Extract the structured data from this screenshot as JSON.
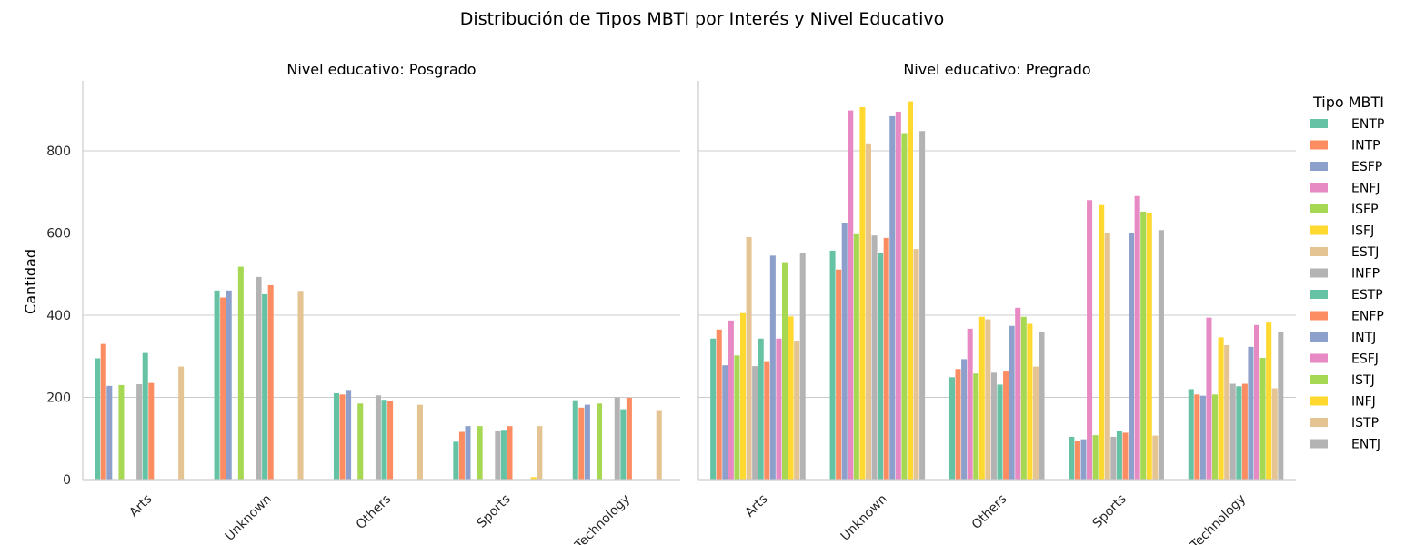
{
  "chart_data": {
    "type": "bar",
    "title": "Distribución de Tipos MBTI por Interés y Nivel Educativo",
    "ylabel": "Cantidad",
    "xlabel": "",
    "ylim": [
      0,
      970
    ],
    "yticks": [
      0,
      200,
      400,
      600,
      800
    ],
    "categories": [
      "Arts",
      "Unknown",
      "Others",
      "Sports",
      "Technology"
    ],
    "grid": "horizontal",
    "legend": {
      "title": "Tipo MBTI",
      "placement": "right",
      "entries": [
        "ENTP",
        "INTP",
        "ESFP",
        "ENFJ",
        "ISFP",
        "ISFJ",
        "ESTJ",
        "INFP",
        "ESTP",
        "ENFP",
        "INTJ",
        "ESFJ",
        "ISTJ",
        "INFJ",
        "ISTP",
        "ENTJ"
      ]
    },
    "colors": [
      "#66c2a5",
      "#fc8d62",
      "#8da0cb",
      "#e78ac3",
      "#a6d854",
      "#ffd92f",
      "#e5c494",
      "#b3b3b3",
      "#66c2a5",
      "#fc8d62",
      "#8da0cb",
      "#e78ac3",
      "#a6d854",
      "#ffd92f",
      "#e5c494",
      "#b3b3b3"
    ],
    "panels": [
      {
        "title": "Nivel educativo: Posgrado",
        "values": {
          "Arts": [
            295,
            330,
            228,
            0,
            230,
            0,
            0,
            232,
            308,
            235,
            0,
            0,
            0,
            0,
            275,
            0
          ],
          "Unknown": [
            460,
            443,
            460,
            0,
            518,
            0,
            0,
            493,
            451,
            473,
            0,
            0,
            0,
            0,
            459,
            0
          ],
          "Others": [
            210,
            207,
            218,
            0,
            185,
            0,
            0,
            205,
            194,
            191,
            0,
            0,
            0,
            0,
            182,
            0
          ],
          "Sports": [
            92,
            116,
            130,
            0,
            130,
            0,
            0,
            118,
            121,
            130,
            0,
            0,
            0,
            6,
            130,
            0
          ],
          "Technology": [
            193,
            175,
            182,
            0,
            185,
            0,
            0,
            200,
            171,
            199,
            0,
            0,
            0,
            0,
            169,
            0
          ]
        }
      },
      {
        "title": "Nivel educativo: Pregrado",
        "values": {
          "Arts": [
            343,
            365,
            278,
            387,
            302,
            405,
            590,
            276,
            343,
            288,
            545,
            343,
            529,
            397,
            338,
            551
          ],
          "Unknown": [
            557,
            511,
            625,
            898,
            597,
            906,
            818,
            594,
            552,
            588,
            884,
            895,
            843,
            920,
            561,
            848
          ],
          "Others": [
            249,
            269,
            293,
            367,
            258,
            396,
            390,
            260,
            231,
            265,
            374,
            418,
            396,
            379,
            275,
            359
          ],
          "Sports": [
            104,
            93,
            98,
            680,
            108,
            668,
            600,
            104,
            118,
            114,
            601,
            690,
            652,
            648,
            107,
            607
          ],
          "Technology": [
            220,
            207,
            204,
            394,
            207,
            346,
            327,
            233,
            227,
            233,
            323,
            376,
            296,
            382,
            222,
            358
          ]
        }
      }
    ]
  }
}
